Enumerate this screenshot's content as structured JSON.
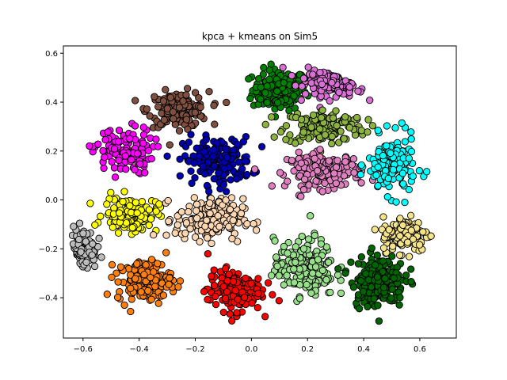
{
  "chart_data": {
    "type": "scatter",
    "title": "kpca + kmeans on Sim5",
    "xlabel": "",
    "ylabel": "",
    "xlim": [
      -0.67,
      0.73
    ],
    "ylim": [
      -0.565,
      0.63
    ],
    "xticks": [
      -0.6,
      -0.4,
      -0.2,
      0.0,
      0.2,
      0.4,
      0.6
    ],
    "xtick_labels": [
      "−0.6",
      "−0.4",
      "−0.2",
      "0.0",
      "0.2",
      "0.4",
      "0.6"
    ],
    "yticks": [
      -0.4,
      -0.2,
      0.0,
      0.2,
      0.4,
      0.6
    ],
    "ytick_labels": [
      "−0.4",
      "−0.2",
      "0.0",
      "0.2",
      "0.4",
      "0.6"
    ],
    "grid": false,
    "legend": "none",
    "marker": "circle",
    "marker_edge_color": "#000000",
    "clusters": [
      {
        "color": "#008000",
        "center": [
          0.1,
          0.45
        ],
        "spread": [
          0.08,
          0.07
        ],
        "count": 160
      },
      {
        "color": "#da70d6",
        "center": [
          0.3,
          0.5
        ],
        "spread": [
          0.09,
          0.06
        ],
        "count": 150
      },
      {
        "color": "#7f5040",
        "center": [
          -0.26,
          0.37
        ],
        "spread": [
          0.09,
          0.06
        ],
        "count": 150
      },
      {
        "color": "#8db33f",
        "center": [
          0.26,
          0.3
        ],
        "spread": [
          0.12,
          0.06
        ],
        "count": 150
      },
      {
        "color": "#ff00ff",
        "center": [
          -0.46,
          0.2
        ],
        "spread": [
          0.09,
          0.08
        ],
        "count": 120
      },
      {
        "color": "#0000b0",
        "center": [
          -0.12,
          0.16
        ],
        "spread": [
          0.1,
          0.08
        ],
        "count": 170
      },
      {
        "color": "#e07fc0",
        "center": [
          0.26,
          0.12
        ],
        "spread": [
          0.11,
          0.06
        ],
        "count": 150
      },
      {
        "color": "#00ffff",
        "center": [
          0.5,
          0.14
        ],
        "spread": [
          0.07,
          0.1
        ],
        "count": 150
      },
      {
        "color": "#ffff00",
        "center": [
          -0.43,
          -0.06
        ],
        "spread": [
          0.08,
          0.06
        ],
        "count": 130
      },
      {
        "color": "#fbd6b0",
        "center": [
          -0.15,
          -0.08
        ],
        "spread": [
          0.1,
          0.07
        ],
        "count": 180
      },
      {
        "color": "#f5e38a",
        "center": [
          0.55,
          -0.14
        ],
        "spread": [
          0.07,
          0.06
        ],
        "count": 150
      },
      {
        "color": "#bdbdbd",
        "center": [
          -0.6,
          -0.2
        ],
        "spread": [
          0.04,
          0.07
        ],
        "count": 110
      },
      {
        "color": "#ff7f0e",
        "center": [
          -0.38,
          -0.33
        ],
        "spread": [
          0.08,
          0.07
        ],
        "count": 170
      },
      {
        "color": "#ff0000",
        "center": [
          -0.06,
          -0.37
        ],
        "spread": [
          0.08,
          0.07
        ],
        "count": 170
      },
      {
        "color": "#98df8a",
        "center": [
          0.19,
          -0.28
        ],
        "spread": [
          0.09,
          0.1
        ],
        "count": 180
      },
      {
        "color": "#006400",
        "center": [
          0.45,
          -0.33
        ],
        "spread": [
          0.08,
          0.09
        ],
        "count": 190
      }
    ]
  }
}
